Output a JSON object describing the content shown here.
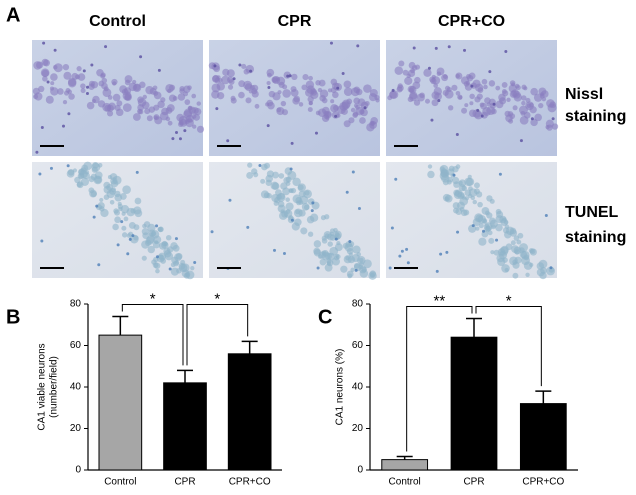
{
  "panel_a": {
    "label": "A",
    "columns": [
      "Control",
      "CPR",
      "CPR+CO"
    ],
    "rows": [
      [
        "Nissl",
        "staining"
      ],
      [
        "TUNEL",
        "staining"
      ]
    ]
  },
  "chart_data": [
    {
      "type": "bar",
      "panel": "B",
      "ylabel": [
        "CA1 viable neurons",
        "(number/field)"
      ],
      "categories": [
        "Control",
        "CPR",
        "CPR+CO"
      ],
      "values": [
        65,
        42,
        56
      ],
      "errors": [
        9,
        6,
        6
      ],
      "colors": [
        "#a6a6a6",
        "#000000",
        "#000000"
      ],
      "ylim": [
        0,
        80
      ],
      "yticks": [
        0,
        20,
        40,
        60,
        80
      ],
      "significance": [
        {
          "pair": [
            0,
            1
          ],
          "label": "*"
        },
        {
          "pair": [
            1,
            2
          ],
          "label": "*"
        }
      ]
    },
    {
      "type": "bar",
      "panel": "C",
      "ylabel": [
        "CA1 neurons (%)"
      ],
      "categories": [
        "Control",
        "CPR",
        "CPR+CO"
      ],
      "values": [
        5,
        64,
        32
      ],
      "errors": [
        1.5,
        9,
        6
      ],
      "colors": [
        "#a6a6a6",
        "#000000",
        "#000000"
      ],
      "ylim": [
        0,
        80
      ],
      "yticks": [
        0,
        20,
        40,
        60,
        80
      ],
      "significance": [
        {
          "pair": [
            0,
            1
          ],
          "label": "**"
        },
        {
          "pair": [
            1,
            2
          ],
          "label": "*"
        }
      ]
    }
  ]
}
